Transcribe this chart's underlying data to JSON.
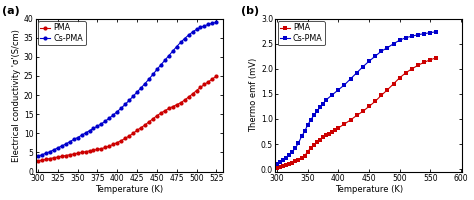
{
  "panel_a": {
    "title": "(a)",
    "xlabel": "Temperature (K)",
    "ylabel": "Electrical conductivity 'σ'(S/cm)",
    "xlim": [
      297,
      533
    ],
    "ylim": [
      0,
      40
    ],
    "xticks": [
      300,
      325,
      350,
      375,
      400,
      425,
      450,
      475,
      500,
      525
    ],
    "yticks": [
      0,
      5,
      10,
      15,
      20,
      25,
      30,
      35,
      40
    ],
    "pma_color": "#cc0000",
    "cspma_color": "#0000cc",
    "pma_x": [
      300,
      305,
      310,
      315,
      320,
      325,
      330,
      335,
      340,
      345,
      350,
      355,
      360,
      365,
      370,
      375,
      380,
      385,
      390,
      395,
      400,
      405,
      410,
      415,
      420,
      425,
      430,
      435,
      440,
      445,
      450,
      455,
      460,
      465,
      470,
      475,
      480,
      485,
      490,
      495,
      500,
      505,
      510,
      515,
      520,
      525
    ],
    "pma_y": [
      2.8,
      3.0,
      3.2,
      3.4,
      3.6,
      3.8,
      4.0,
      4.2,
      4.4,
      4.6,
      4.8,
      5.0,
      5.2,
      5.4,
      5.6,
      5.8,
      6.0,
      6.3,
      6.7,
      7.1,
      7.6,
      8.1,
      8.7,
      9.3,
      10.0,
      10.8,
      11.5,
      12.2,
      13.0,
      13.8,
      14.6,
      15.3,
      15.9,
      16.5,
      17.0,
      17.5,
      18.0,
      18.7,
      19.5,
      20.3,
      21.2,
      22.0,
      22.8,
      23.5,
      24.2,
      25.0
    ],
    "cspma_x": [
      300,
      305,
      310,
      315,
      320,
      325,
      330,
      335,
      340,
      345,
      350,
      355,
      360,
      365,
      370,
      375,
      380,
      385,
      390,
      395,
      400,
      405,
      410,
      415,
      420,
      425,
      430,
      435,
      440,
      445,
      450,
      455,
      460,
      465,
      470,
      475,
      480,
      485,
      490,
      495,
      500,
      505,
      510,
      515,
      520,
      525
    ],
    "cspma_y": [
      4.0,
      4.4,
      4.8,
      5.2,
      5.7,
      6.2,
      6.7,
      7.2,
      7.8,
      8.4,
      8.9,
      9.5,
      10.1,
      10.7,
      11.3,
      11.9,
      12.5,
      13.2,
      14.0,
      14.8,
      15.7,
      16.6,
      17.6,
      18.6,
      19.7,
      20.8,
      21.9,
      23.0,
      24.2,
      25.4,
      26.7,
      27.9,
      29.1,
      30.3,
      31.5,
      32.7,
      33.8,
      34.8,
      35.7,
      36.5,
      37.2,
      37.7,
      38.1,
      38.5,
      38.8,
      39.0
    ]
  },
  "panel_b": {
    "title": "(b)",
    "xlabel": "Temperature (K)",
    "ylabel": "Thermo emf (mV)",
    "xlim": [
      297,
      602
    ],
    "ylim": [
      -0.05,
      3.0
    ],
    "xticks": [
      300,
      350,
      400,
      450,
      500,
      550,
      600
    ],
    "yticks": [
      0.0,
      0.5,
      1.0,
      1.5,
      2.0,
      2.5,
      3.0
    ],
    "pma_color": "#cc0000",
    "cspma_color": "#0000cc",
    "pma_x": [
      300,
      305,
      310,
      315,
      320,
      325,
      330,
      335,
      340,
      345,
      350,
      355,
      360,
      365,
      370,
      375,
      380,
      385,
      390,
      395,
      400,
      410,
      420,
      430,
      440,
      450,
      460,
      470,
      480,
      490,
      500,
      510,
      520,
      530,
      540,
      550,
      560
    ],
    "pma_y": [
      0.02,
      0.04,
      0.06,
      0.08,
      0.1,
      0.13,
      0.16,
      0.19,
      0.22,
      0.26,
      0.35,
      0.42,
      0.48,
      0.53,
      0.58,
      0.63,
      0.67,
      0.7,
      0.74,
      0.78,
      0.82,
      0.9,
      0.98,
      1.07,
      1.15,
      1.25,
      1.35,
      1.47,
      1.58,
      1.7,
      1.82,
      1.92,
      2.0,
      2.07,
      2.13,
      2.18,
      2.22
    ],
    "cspma_x": [
      300,
      305,
      310,
      315,
      320,
      325,
      330,
      335,
      340,
      345,
      350,
      355,
      360,
      365,
      370,
      375,
      380,
      390,
      400,
      410,
      420,
      430,
      440,
      450,
      460,
      470,
      480,
      490,
      500,
      510,
      520,
      530,
      540,
      550,
      560
    ],
    "cspma_y": [
      0.1,
      0.14,
      0.18,
      0.23,
      0.28,
      0.35,
      0.42,
      0.52,
      0.65,
      0.75,
      0.88,
      0.98,
      1.07,
      1.15,
      1.23,
      1.3,
      1.38,
      1.48,
      1.58,
      1.68,
      1.8,
      1.92,
      2.04,
      2.15,
      2.25,
      2.35,
      2.42,
      2.5,
      2.57,
      2.62,
      2.65,
      2.68,
      2.7,
      2.72,
      2.74
    ]
  },
  "background_color": "#ffffff",
  "label_fontsize": 6.0,
  "tick_fontsize": 5.5,
  "legend_fontsize": 5.8,
  "marker_size": 3.0,
  "line_width": 0.8
}
